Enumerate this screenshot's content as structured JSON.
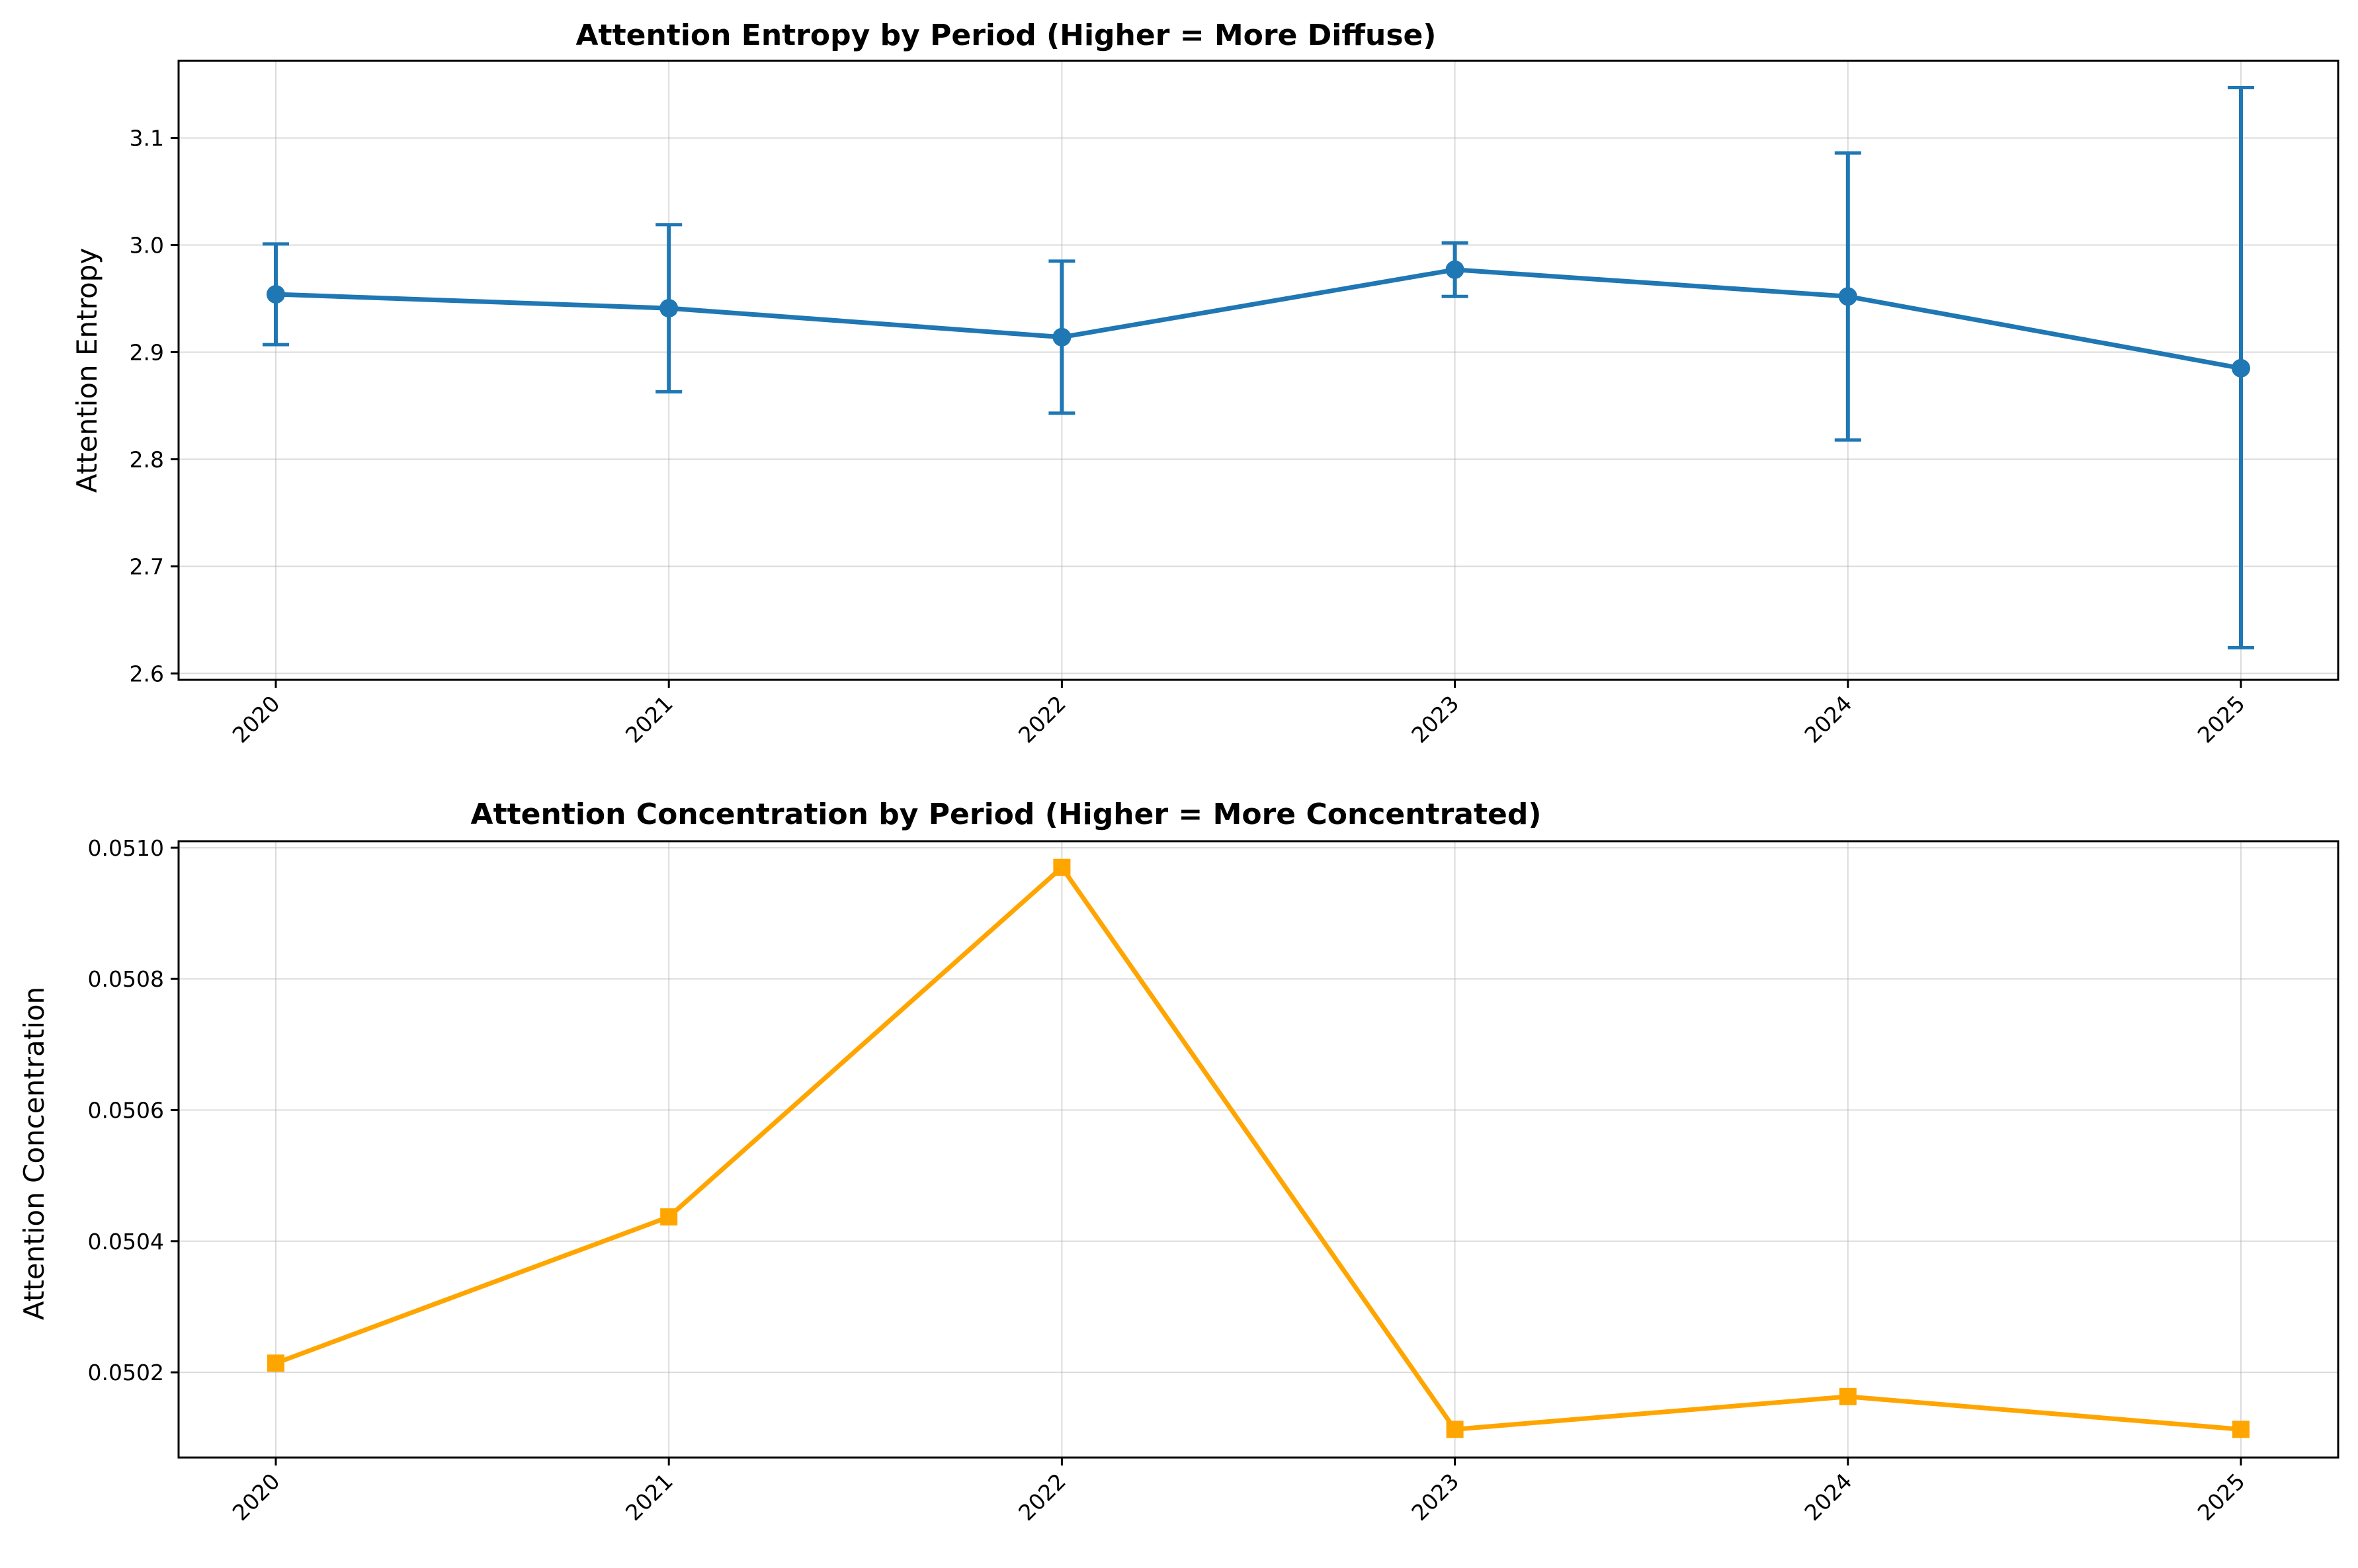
{
  "colors": {
    "entropy": "#1f77b4",
    "concentration": "#ffa500"
  },
  "chart_data": [
    {
      "type": "line",
      "title": "Attention Entropy by Period (Higher = More Diffuse)",
      "xlabel": "",
      "ylabel": "Attention Entropy",
      "categories": [
        "2020",
        "2021",
        "2022",
        "2023",
        "2024",
        "2025"
      ],
      "values": [
        2.954,
        2.941,
        2.914,
        2.977,
        2.952,
        2.885
      ],
      "error_low": [
        2.907,
        2.863,
        2.843,
        2.952,
        2.818,
        2.624
      ],
      "error_high": [
        3.001,
        3.019,
        2.985,
        3.002,
        3.086,
        3.147
      ],
      "marker": "circle",
      "ylim": [
        2.594,
        3.172
      ],
      "yticks": [
        2.6,
        2.7,
        2.8,
        2.9,
        3.0,
        3.1
      ],
      "ytick_labels": [
        "2.6",
        "2.7",
        "2.8",
        "2.9",
        "3.0",
        "3.1"
      ],
      "grid": true,
      "legend": "none"
    },
    {
      "type": "line",
      "title": "Attention Concentration by Period (Higher = More Concentrated)",
      "xlabel": "",
      "ylabel": "Attention Concentration",
      "categories": [
        "2020",
        "2021",
        "2022",
        "2023",
        "2024",
        "2025"
      ],
      "values": [
        0.050214,
        0.050437,
        0.05097,
        0.050113,
        0.050163,
        0.050113
      ],
      "marker": "square",
      "ylim": [
        0.05007,
        0.05101
      ],
      "yticks": [
        0.0502,
        0.0504,
        0.0506,
        0.0508,
        0.051
      ],
      "ytick_labels": [
        "0.0502",
        "0.0504",
        "0.0506",
        "0.0508",
        "0.0510"
      ],
      "grid": true,
      "legend": "none"
    }
  ]
}
